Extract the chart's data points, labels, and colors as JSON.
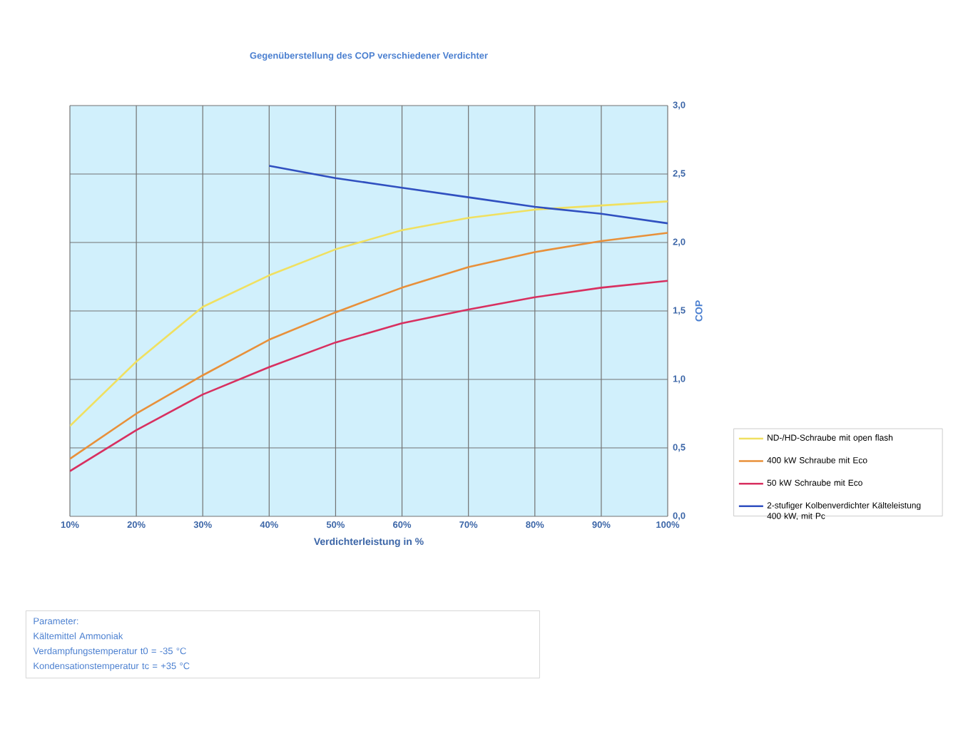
{
  "chart_data": {
    "type": "line",
    "title": "Gegenüberstellung des COP verschiedener Verdichter",
    "xlabel": "Verdichterleistung in %",
    "ylabel": "COP",
    "x": [
      10,
      20,
      30,
      40,
      50,
      60,
      70,
      80,
      90,
      100
    ],
    "series": [
      {
        "name": "ND-/HD-Schraube mit open flash",
        "color": "#f0e060",
        "values": [
          0.66,
          1.13,
          1.53,
          1.76,
          1.95,
          2.09,
          2.18,
          2.24,
          2.27,
          2.3
        ]
      },
      {
        "name": "400 kW Schraube mit Eco",
        "color": "#e8903a",
        "values": [
          0.42,
          0.75,
          1.03,
          1.29,
          1.49,
          1.67,
          1.82,
          1.93,
          2.01,
          2.07
        ]
      },
      {
        "name": "50 kW Schraube mit Eco",
        "color": "#d83060",
        "values": [
          0.33,
          0.63,
          0.89,
          1.09,
          1.27,
          1.41,
          1.51,
          1.6,
          1.67,
          1.72
        ]
      },
      {
        "name": "2-stufiger Kolbenverdichter Kälteleistung 400 kW, mit Pc",
        "color": "#3050c0",
        "values": [
          null,
          null,
          null,
          2.56,
          2.47,
          2.4,
          2.33,
          2.26,
          2.21,
          2.14
        ]
      }
    ],
    "xlim": [
      10,
      100
    ],
    "xticks": [
      {
        "value": 10,
        "label": "10%"
      },
      {
        "value": 20,
        "label": "20%"
      },
      {
        "value": 30,
        "label": "30%"
      },
      {
        "value": 40,
        "label": "40%"
      },
      {
        "value": 50,
        "label": "50%"
      },
      {
        "value": 60,
        "label": "60%"
      },
      {
        "value": 70,
        "label": "70%"
      },
      {
        "value": 80,
        "label": "80%"
      },
      {
        "value": 90,
        "label": "90%"
      },
      {
        "value": 100,
        "label": "100%"
      }
    ],
    "ylim": [
      0,
      3
    ],
    "yticks": [
      {
        "value": 0,
        "label": "0,0"
      },
      {
        "value": 0.5,
        "label": "0,5"
      },
      {
        "value": 1,
        "label": "1,0"
      },
      {
        "value": 1.5,
        "label": "1,5"
      },
      {
        "value": 2,
        "label": "2,0"
      },
      {
        "value": 2.5,
        "label": "2,5"
      },
      {
        "value": 3,
        "label": "3,0"
      }
    ],
    "grid": true,
    "legend": "right",
    "annotations": [
      "Parameter:",
      "Kältemittel Ammoniak",
      "Verdampfungstemperatur t0 = -35 °C",
      "Kondensationstemperatur tc = +35 °C"
    ]
  }
}
